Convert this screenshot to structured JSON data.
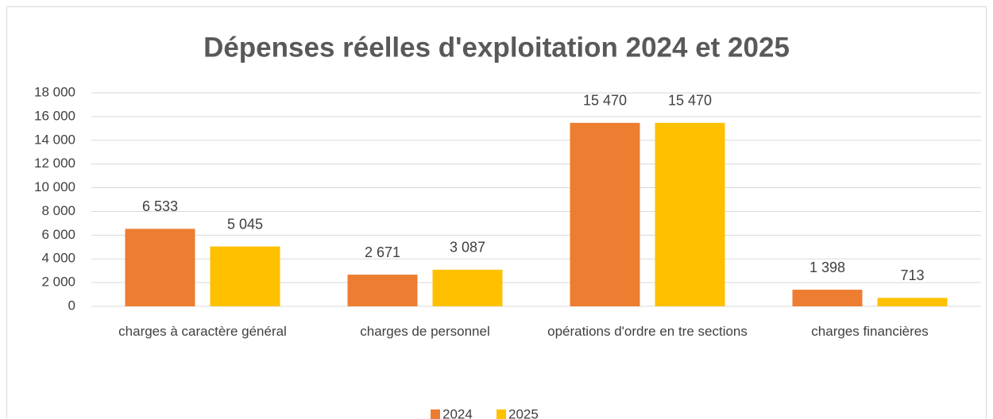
{
  "chart_data": {
    "type": "bar",
    "title": "Dépenses réelles d'exploitation 2024 et 2025",
    "categories": [
      "charges à caractère général",
      "charges de personnel",
      "opérations d'ordre en tre sections",
      "charges financières"
    ],
    "series": [
      {
        "name": "2024",
        "color": "#ed7d31",
        "values": [
          6533,
          2671,
          15470,
          1398
        ],
        "value_labels": [
          "6 533",
          "2 671",
          "15 470",
          "1 398"
        ]
      },
      {
        "name": "2025",
        "color": "#ffc000",
        "values": [
          5045,
          3087,
          15470,
          713
        ],
        "value_labels": [
          "5 045",
          "3 087",
          "15 470",
          "713"
        ]
      }
    ],
    "ylim": [
      0,
      18000
    ],
    "yticks": [
      0,
      {
        "value": 2000,
        "label": "2 000"
      },
      {
        "value": 4000,
        "label": "4 000"
      },
      {
        "value": 6000,
        "label": "6 000"
      },
      {
        "value": 8000,
        "label": "8 000"
      },
      {
        "value": 10000,
        "label": "10 000"
      },
      {
        "value": 12000,
        "label": "12 000"
      },
      {
        "value": 14000,
        "label": "14 000"
      },
      {
        "value": 16000,
        "label": "16 000"
      },
      {
        "value": 18000,
        "label": "18 000"
      }
    ],
    "grid": true,
    "legend": "bottom"
  }
}
